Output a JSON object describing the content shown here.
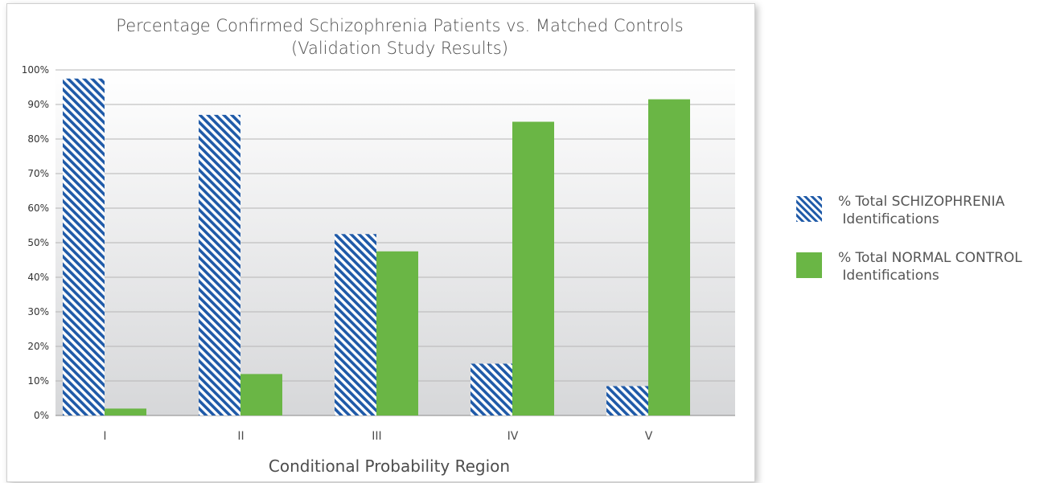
{
  "colors": {
    "schizophrenia": "#1f5aa8",
    "normal_control": "#6ab645",
    "plot_bg_top": "#ffffff",
    "plot_bg_bottom": "#d6d7d9",
    "grid": "#b5b5b5"
  },
  "chart_data": {
    "type": "bar",
    "title": "Percentage Confirmed Schizophrenia Patients vs. Matched Controls",
    "subtitle": "(Validation Study Results)",
    "xlabel": "Conditional Probability Region",
    "ylabel": "",
    "categories": [
      "I",
      "II",
      "III",
      "IV",
      "V"
    ],
    "ylim": [
      0,
      100
    ],
    "yticks": [
      "0%",
      "10%",
      "20%",
      "30%",
      "40%",
      "50%",
      "60%",
      "70%",
      "80%",
      "90%",
      "100%"
    ],
    "grid": true,
    "legend_position": "right",
    "series": [
      {
        "name": "% Total SCHIZOPHRENIA\n Identifications",
        "pattern": "diagonal-hatch",
        "values": [
          97.5,
          87,
          52.5,
          15,
          8.5
        ]
      },
      {
        "name": "% Total NORMAL CONTROL\n Identifications",
        "pattern": "solid",
        "values": [
          2,
          12,
          47.5,
          85,
          91.5
        ]
      }
    ]
  }
}
